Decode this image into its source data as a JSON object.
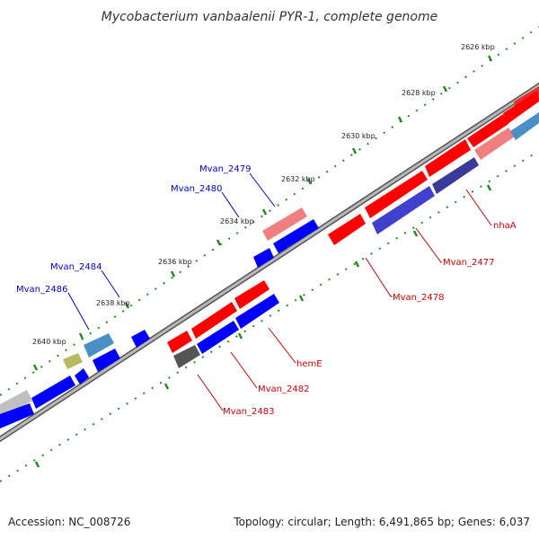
{
  "title": "Mycobacterium vanbaalenii PYR-1, complete genome",
  "colors": {
    "forward": "#ff0000",
    "reverse": "#0000ff",
    "forward_label": "#cc0000",
    "reverse_label": "#0000cc",
    "backbone": "#888888",
    "ticks": "#228b22"
  },
  "kbp_ticks": [
    {
      "id": "2626",
      "label": "2626 kbp"
    },
    {
      "id": "2628",
      "label": "2628 kbp"
    },
    {
      "id": "2630",
      "label": "2630 kbp"
    },
    {
      "id": "2632",
      "label": "2632 kbp"
    },
    {
      "id": "2634",
      "label": "2634 kbp"
    },
    {
      "id": "2636",
      "label": "2636 kbp"
    },
    {
      "id": "2638",
      "label": "2638 kbp"
    },
    {
      "id": "2640",
      "label": "2640 kbp"
    }
  ],
  "gene_labels": [
    {
      "id": "mvan_2479",
      "label": "Mvan_2479",
      "strand": "reverse"
    },
    {
      "id": "mvan_2480",
      "label": "Mvan_2480",
      "strand": "reverse"
    },
    {
      "id": "mvan_2484",
      "label": "Mvan_2484",
      "strand": "reverse"
    },
    {
      "id": "mvan_2486",
      "label": "Mvan_2486",
      "strand": "reverse"
    },
    {
      "id": "nhaA",
      "label": "nhaA",
      "strand": "forward"
    },
    {
      "id": "mvan_2477",
      "label": "Mvan_2477",
      "strand": "forward"
    },
    {
      "id": "mvan_2478",
      "label": "Mvan_2478",
      "strand": "forward"
    },
    {
      "id": "hemE",
      "label": "hemE",
      "strand": "forward"
    },
    {
      "id": "mvan_2482",
      "label": "Mvan_2482",
      "strand": "forward"
    },
    {
      "id": "mvan_2483",
      "label": "Mvan_2483",
      "strand": "forward"
    }
  ],
  "footer": {
    "accession": "Accession: NC_008726",
    "summary": "Topology: circular; Length: 6,491,865 bp; Genes: 6,037"
  }
}
